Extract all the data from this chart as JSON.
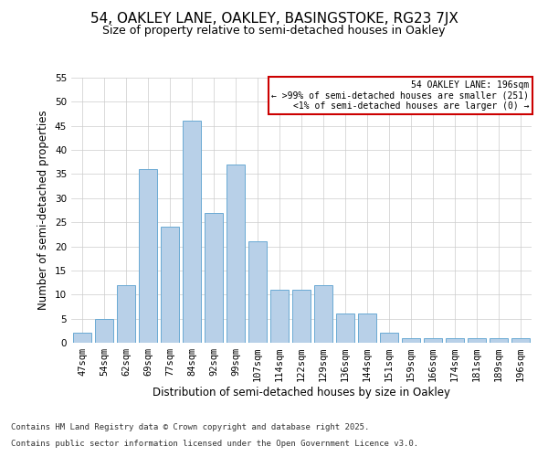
{
  "title": "54, OAKLEY LANE, OAKLEY, BASINGSTOKE, RG23 7JX",
  "subtitle": "Size of property relative to semi-detached houses in Oakley",
  "xlabel": "Distribution of semi-detached houses by size in Oakley",
  "ylabel": "Number of semi-detached properties",
  "categories": [
    "47sqm",
    "54sqm",
    "62sqm",
    "69sqm",
    "77sqm",
    "84sqm",
    "92sqm",
    "99sqm",
    "107sqm",
    "114sqm",
    "122sqm",
    "129sqm",
    "136sqm",
    "144sqm",
    "151sqm",
    "159sqm",
    "166sqm",
    "174sqm",
    "181sqm",
    "189sqm",
    "196sqm"
  ],
  "values": [
    2,
    5,
    12,
    36,
    24,
    46,
    27,
    37,
    21,
    11,
    11,
    12,
    6,
    6,
    2,
    1,
    1,
    1,
    1,
    1,
    1
  ],
  "bar_color": "#b8d0e8",
  "bar_edge_color": "#6aaad4",
  "annotation_title": "54 OAKLEY LANE: 196sqm",
  "annotation_line1": "← >99% of semi-detached houses are smaller (251)",
  "annotation_line2": "<1% of semi-detached houses are larger (0) →",
  "annotation_box_color": "#ffffff",
  "annotation_box_edge_color": "#cc0000",
  "footer_line1": "Contains HM Land Registry data © Crown copyright and database right 2025.",
  "footer_line2": "Contains public sector information licensed under the Open Government Licence v3.0.",
  "ylim": [
    0,
    55
  ],
  "yticks": [
    0,
    5,
    10,
    15,
    20,
    25,
    30,
    35,
    40,
    45,
    50,
    55
  ],
  "background_color": "#ffffff",
  "grid_color": "#cccccc",
  "title_fontsize": 11,
  "subtitle_fontsize": 9,
  "axis_label_fontsize": 8.5,
  "tick_fontsize": 7.5,
  "footer_fontsize": 6.5
}
